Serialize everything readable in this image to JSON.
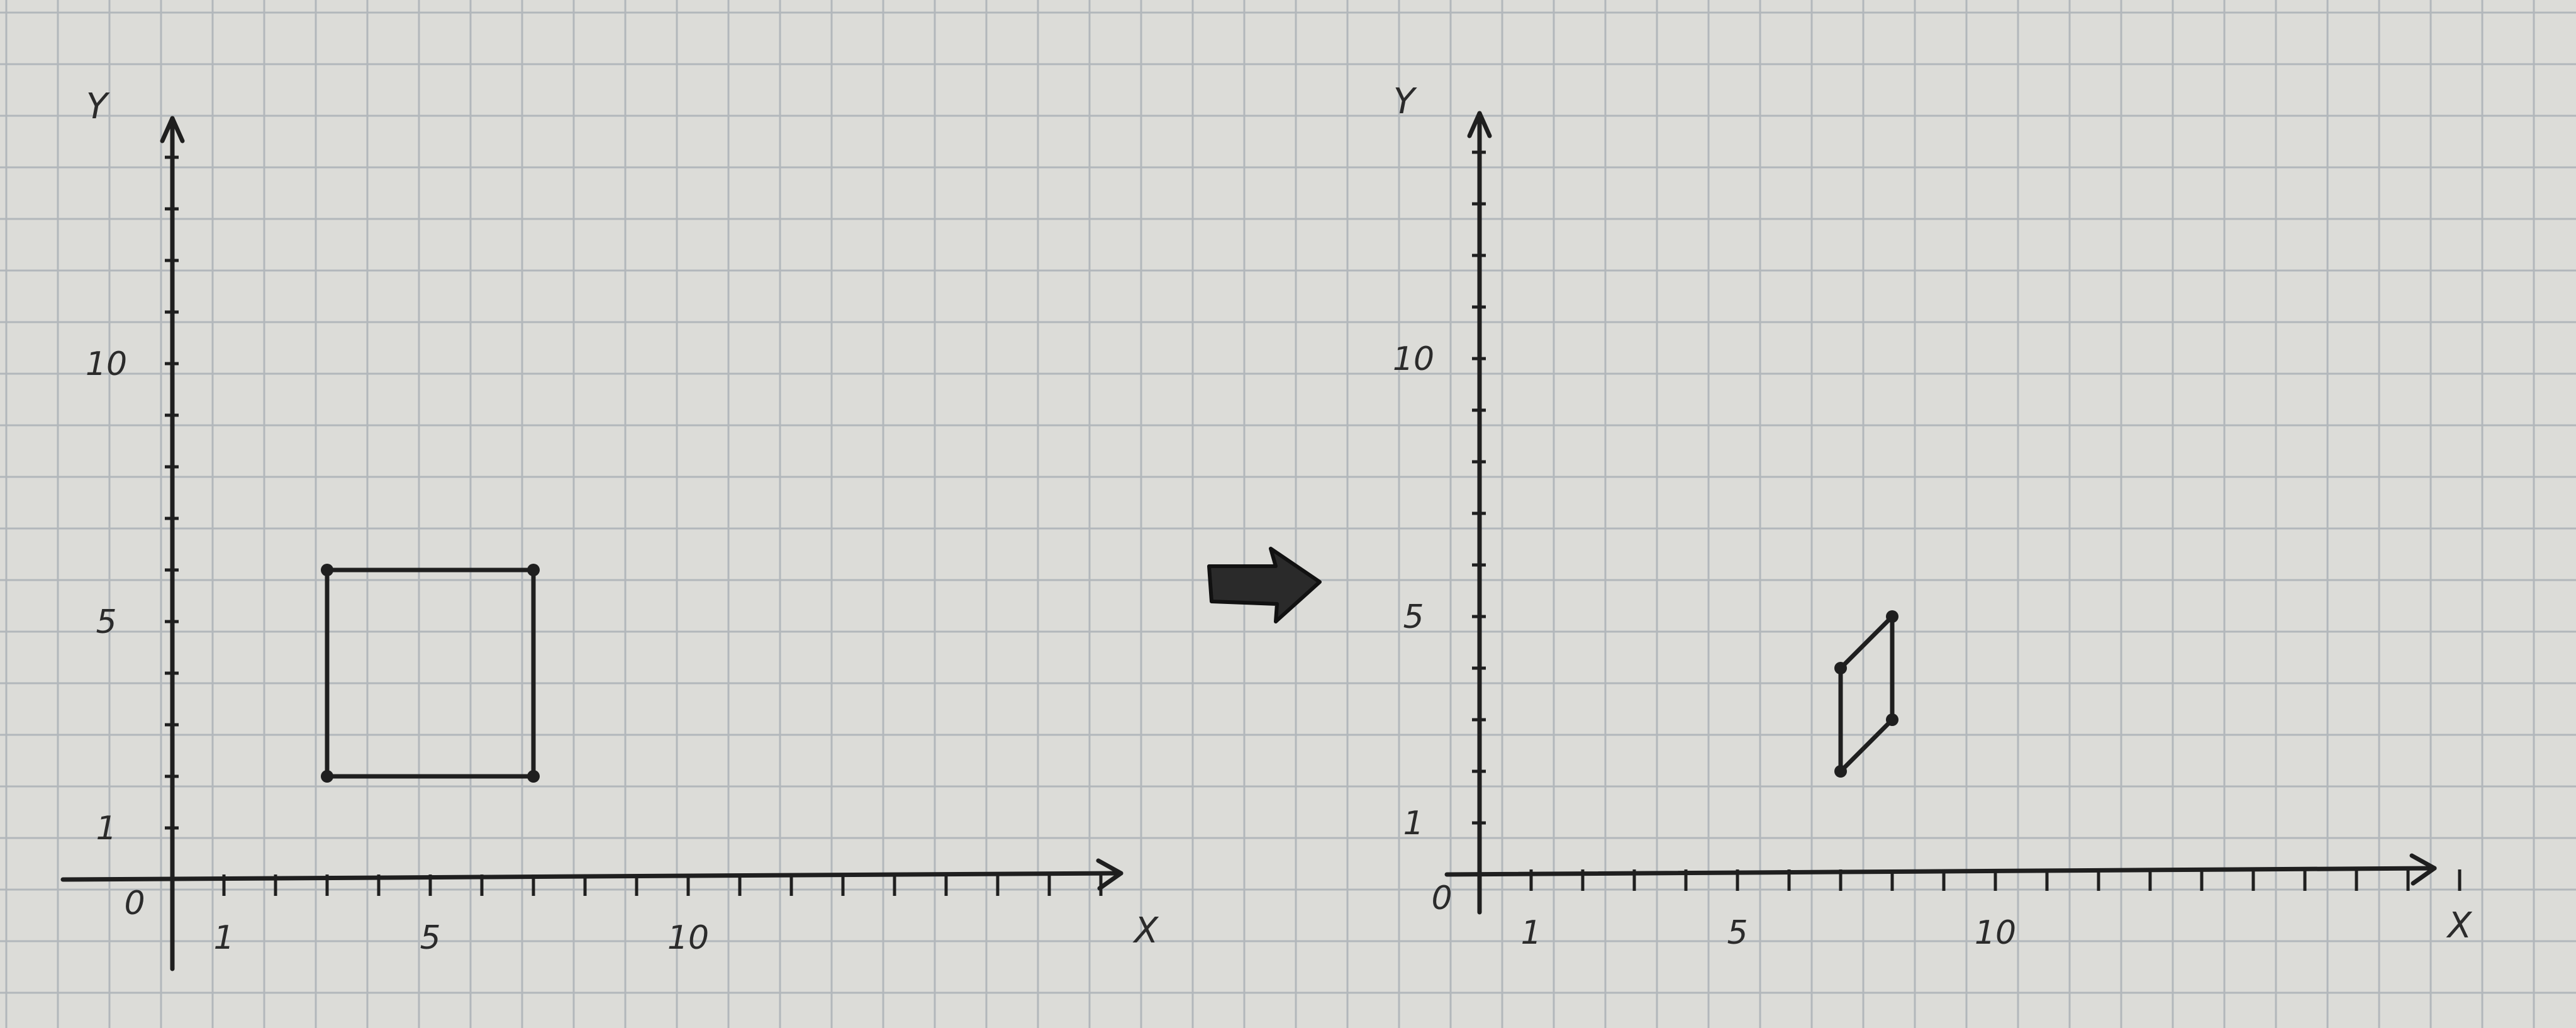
{
  "paper": {
    "background": "#dcdcd8",
    "grid_color": "#b2b7bb",
    "ink_color": "#1f1f1f"
  },
  "arrow": {
    "icon": "right-arrow-icon",
    "meaning": "transformation"
  },
  "plots": [
    {
      "id": "before",
      "axis_label_x": "X",
      "axis_label_y": "Y",
      "origin_label": "0",
      "x_tick_labels": [
        {
          "value": 1,
          "text": "1"
        },
        {
          "value": 5,
          "text": "5"
        },
        {
          "value": 10,
          "text": "10"
        }
      ],
      "y_tick_labels": [
        {
          "value": 1,
          "text": "1"
        },
        {
          "value": 5,
          "text": "5"
        },
        {
          "value": 10,
          "text": "10"
        }
      ],
      "x_max": 18,
      "y_max": 14,
      "shape": [
        [
          3,
          2
        ],
        [
          7,
          2
        ],
        [
          7,
          6
        ],
        [
          3,
          6
        ]
      ]
    },
    {
      "id": "after",
      "axis_label_x": "X",
      "axis_label_y": "Y",
      "origin_label": "0",
      "x_tick_labels": [
        {
          "value": 1,
          "text": "1"
        },
        {
          "value": 5,
          "text": "5"
        },
        {
          "value": 10,
          "text": "10"
        }
      ],
      "y_tick_labels": [
        {
          "value": 1,
          "text": "1"
        },
        {
          "value": 5,
          "text": "5"
        },
        {
          "value": 10,
          "text": "10"
        }
      ],
      "x_max": 19,
      "y_max": 14,
      "shape": [
        [
          7,
          2
        ],
        [
          8,
          3
        ],
        [
          8,
          5
        ],
        [
          7,
          4
        ]
      ]
    }
  ]
}
